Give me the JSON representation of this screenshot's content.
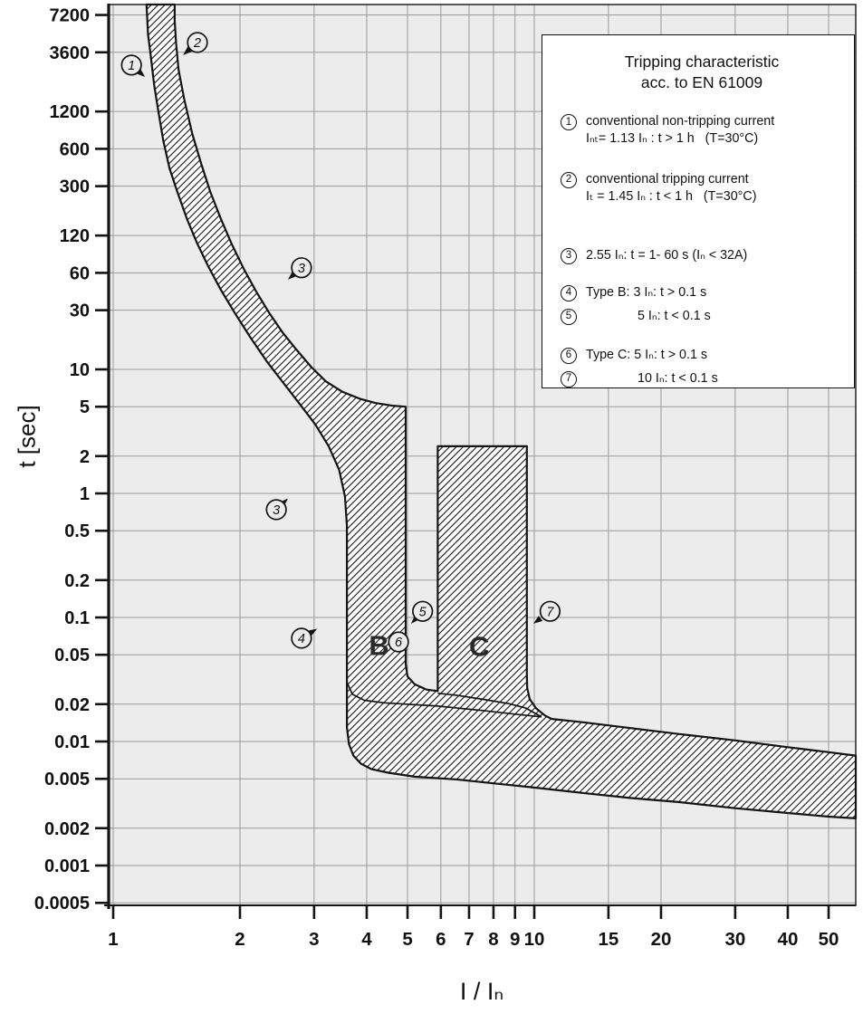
{
  "page": {
    "background": "#ffffff"
  },
  "axes": {
    "y_label": "t [sec]",
    "x_label": "I / Iₙ"
  },
  "legend": {
    "title_line1": "Tripping characteristic",
    "title_line2": "acc. to EN 61009",
    "items": [
      {
        "num": "1",
        "lines": [
          "conventional non-tripping current",
          "Iₙₜ= 1.13 Iₙ : t > 1 h   (T=30°C)"
        ]
      },
      {
        "num": "2",
        "lines": [
          "conventional tripping current",
          "Iₜ = 1.45 Iₙ : t < 1 h   (T=30°C)"
        ]
      },
      {
        "num": "3",
        "lines": [
          "2.55 Iₙ: t = 1- 60 s (Iₙ < 32A)"
        ]
      },
      {
        "num": "4",
        "lines": [
          "Type B: 3 Iₙ: t > 0.1 s"
        ]
      },
      {
        "num": "5",
        "lines": [
          "5 Iₙ: t < 0.1 s"
        ],
        "indent": true
      },
      {
        "num": "6",
        "lines": [
          "Type C: 5 Iₙ: t > 0.1 s"
        ]
      },
      {
        "num": "7",
        "lines": [
          "10 Iₙ: t < 0.1 s"
        ],
        "indent": true
      }
    ]
  },
  "chart_data": {
    "type": "area",
    "title": "Tripping characteristic acc. to EN 61009",
    "xlabel": "I / In",
    "ylabel": "t [sec]",
    "x_axis": {
      "scale": "log",
      "range": [
        1,
        58
      ],
      "ticks": [
        1,
        2,
        3,
        4,
        5,
        6,
        7,
        8,
        9,
        10,
        15,
        20,
        30,
        40,
        50
      ]
    },
    "y_axis": {
      "scale": "log",
      "range": [
        0.000477,
        8743
      ],
      "ticks": [
        7200,
        3600,
        1200,
        600,
        300,
        120,
        60,
        30,
        10,
        5,
        2,
        1,
        0.5,
        0.2,
        0.1,
        0.05,
        0.02,
        0.01,
        0.005,
        0.002,
        0.001,
        0.0005
      ]
    },
    "grid": true,
    "limits": {
      "conventional_non_tripping_current": "1.13 In, t > 1 h",
      "conventional_tripping_current": "1.45 In, t < 1 h",
      "test_current": "2.55 In, t = 1-60 s (In < 32A)",
      "type_B_magnetic_range_In": [
        3,
        5
      ],
      "type_C_magnetic_range_In": [
        5,
        10
      ]
    },
    "band_outline": [
      [
        1.2,
        8743
      ],
      [
        1.21,
        5000
      ],
      [
        1.225,
        3600
      ],
      [
        1.25,
        2000
      ],
      [
        1.28,
        1200
      ],
      [
        1.315,
        700
      ],
      [
        1.36,
        420
      ],
      [
        1.42,
        270
      ],
      [
        1.5,
        160
      ],
      [
        1.58,
        105
      ],
      [
        1.68,
        68
      ],
      [
        1.8,
        44
      ],
      [
        1.95,
        28
      ],
      [
        2.12,
        18
      ],
      [
        2.32,
        11.5
      ],
      [
        2.55,
        7.6
      ],
      [
        2.78,
        5.2
      ],
      [
        3.02,
        3.6
      ],
      [
        3.25,
        2.4
      ],
      [
        3.44,
        1.55
      ],
      [
        3.55,
        0.95
      ],
      [
        3.59,
        0.55
      ],
      [
        3.59,
        0.013
      ],
      [
        3.63,
        0.0095
      ],
      [
        3.72,
        0.0077
      ],
      [
        3.88,
        0.0066
      ],
      [
        4.1,
        0.006
      ],
      [
        4.5,
        0.0056
      ],
      [
        5.2,
        0.0052
      ],
      [
        6.5,
        0.00495
      ],
      [
        8,
        0.0046
      ],
      [
        10,
        0.00425
      ],
      [
        13,
        0.00385
      ],
      [
        17,
        0.0035
      ],
      [
        22,
        0.00325
      ],
      [
        30,
        0.0029
      ],
      [
        40,
        0.00265
      ],
      [
        50,
        0.00248
      ],
      [
        58,
        0.0024
      ],
      [
        58,
        0.0077
      ],
      [
        50,
        0.0082
      ],
      [
        40,
        0.009
      ],
      [
        30,
        0.0102
      ],
      [
        22,
        0.0115
      ],
      [
        17,
        0.0128
      ],
      [
        13,
        0.0143
      ],
      [
        11,
        0.0152
      ],
      [
        10.6,
        0.0162
      ],
      [
        10.1,
        0.0185
      ],
      [
        9.75,
        0.022
      ],
      [
        9.62,
        0.027
      ],
      [
        9.6,
        0.034
      ],
      [
        9.6,
        2.4
      ],
      [
        5.9,
        2.4
      ],
      [
        5.9,
        0.0255
      ],
      [
        5.55,
        0.0262
      ],
      [
        5.2,
        0.029
      ],
      [
        5.0,
        0.0335
      ],
      [
        4.95,
        0.042
      ],
      [
        4.95,
        5.0
      ],
      [
        4.6,
        5.1
      ],
      [
        4.2,
        5.35
      ],
      [
        3.85,
        5.8
      ],
      [
        3.5,
        6.6
      ],
      [
        3.2,
        8.0
      ],
      [
        2.95,
        10.5
      ],
      [
        2.72,
        14.5
      ],
      [
        2.52,
        20
      ],
      [
        2.34,
        29
      ],
      [
        2.18,
        43
      ],
      [
        2.04,
        65
      ],
      [
        1.91,
        103
      ],
      [
        1.8,
        165
      ],
      [
        1.7,
        270
      ],
      [
        1.62,
        450
      ],
      [
        1.54,
        800
      ],
      [
        1.475,
        1500
      ],
      [
        1.43,
        2600
      ],
      [
        1.41,
        4300
      ],
      [
        1.4,
        6500
      ],
      [
        1.4,
        8743
      ]
    ],
    "inner_lines": [
      [
        [
          3.59,
          0.03
        ],
        [
          3.7,
          0.024
        ],
        [
          3.95,
          0.0215
        ],
        [
          4.4,
          0.0205
        ],
        [
          5.9,
          0.0193
        ],
        [
          7.5,
          0.0178
        ],
        [
          9.0,
          0.0166
        ],
        [
          10.4,
          0.0158
        ]
      ],
      [
        [
          5.9,
          0.0245
        ],
        [
          6.6,
          0.0235
        ],
        [
          7.6,
          0.0218
        ],
        [
          8.7,
          0.0202
        ],
        [
          9.55,
          0.0186
        ],
        [
          10.4,
          0.0158
        ]
      ]
    ],
    "annotations": {
      "markers": [
        {
          "num": "1",
          "i": 1.105,
          "t": 2840,
          "tip_i": 1.19,
          "tip_t": 2280
        },
        {
          "num": "2",
          "i": 1.585,
          "t": 4320,
          "tip_i": 1.465,
          "tip_t": 3420
        },
        {
          "num": "3",
          "i": 2.8,
          "t": 66,
          "tip_i": 2.6,
          "tip_t": 53
        },
        {
          "num": "3",
          "i": 2.44,
          "t": 0.74,
          "tip_i": 2.6,
          "tip_t": 0.91
        },
        {
          "num": "4",
          "i": 2.8,
          "t": 0.068,
          "tip_i": 3.05,
          "tip_t": 0.081
        },
        {
          "num": "5",
          "i": 5.43,
          "t": 0.112,
          "tip_i": 5.1,
          "tip_t": 0.089
        },
        {
          "num": "6",
          "i": 4.76,
          "t": 0.0635,
          "tip_i": 4.99,
          "tip_t": 0.0545
        },
        {
          "num": "7",
          "i": 10.9,
          "t": 0.112,
          "tip_i": 9.95,
          "tip_t": 0.089
        }
      ],
      "letters": [
        {
          "text": "B",
          "i": 4.28,
          "t": 0.06
        },
        {
          "text": "C",
          "i": 7.4,
          "t": 0.059
        }
      ]
    },
    "colors": {
      "plot_bg": "#ececec",
      "grid": "#9a9a9a",
      "band_stroke": "#141414",
      "hatch": "#151515",
      "frame": "#141414",
      "text": "#111111"
    }
  }
}
